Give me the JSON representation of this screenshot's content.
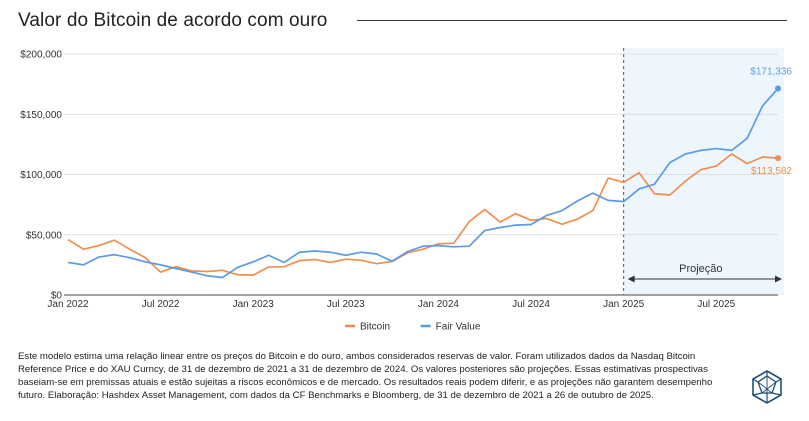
{
  "page": {
    "title": "Valor do Bitcoin de acordo com ouro",
    "footnote": "Este modelo estima uma relação linear entre os preços do Bitcoin e do ouro, ambos considerados reservas de valor. Foram utilizados dados da Nasdaq Bitcoin Reference Price e do XAU Curncy, de 31 de dezembro de 2021 a 31 de dezembro de 2024. Os valores posteriores são projeções. Essas estimativas prospectivas baseiam-se em premissas atuais e estão sujeitas a riscos econômicos e de mercado. Os resultados reais podem diferir, e as projeções não garantem desempenho futuro. Elaboração: Hashdex Asset Management, com dados da CF Benchmarks e Bloomberg, de 31 de dezembro de 2021 a 26 de outubro de 2025.",
    "logo_icon": "hashdex-logo-icon"
  },
  "chart_data": {
    "type": "line",
    "title": "Valor do Bitcoin de acordo com ouro",
    "xlabel": "",
    "ylabel": "",
    "x_ticks": [
      "Jan 2022",
      "Jul 2022",
      "Jan 2023",
      "Jul 2023",
      "Jan 2024",
      "Jul 2024",
      "Jan 2025",
      "Jul 2025"
    ],
    "y_ticks": [
      "$0",
      "$50,000",
      "$100,000",
      "$150,000",
      "$200,000"
    ],
    "xlim": [
      "2022-01",
      "2025-11"
    ],
    "ylim": [
      0,
      200000
    ],
    "grid": "horizontal",
    "legend_position": "bottom",
    "projection": {
      "label": "Projeção",
      "start": "2025-01",
      "end": "2025-11",
      "fill_color": "#EEF6FD",
      "divider": "dashed"
    },
    "x": [
      "2022-01",
      "2022-02",
      "2022-03",
      "2022-04",
      "2022-05",
      "2022-06",
      "2022-07",
      "2022-08",
      "2022-09",
      "2022-10",
      "2022-11",
      "2022-12",
      "2023-01",
      "2023-02",
      "2023-03",
      "2023-04",
      "2023-05",
      "2023-06",
      "2023-07",
      "2023-08",
      "2023-09",
      "2023-10",
      "2023-11",
      "2023-12",
      "2024-01",
      "2024-02",
      "2024-03",
      "2024-04",
      "2024-05",
      "2024-06",
      "2024-07",
      "2024-08",
      "2024-09",
      "2024-10",
      "2024-11",
      "2024-12",
      "2025-01",
      "2025-02",
      "2025-03",
      "2025-04",
      "2025-05",
      "2025-06",
      "2025-07",
      "2025-08",
      "2025-09",
      "2025-10",
      "2025-11"
    ],
    "series": [
      {
        "name": "Bitcoin",
        "color": "#F28E4C",
        "end_label": "$113,582",
        "values": [
          46000,
          38000,
          41000,
          45500,
          38000,
          31000,
          19000,
          23500,
          20000,
          19500,
          20500,
          16800,
          16500,
          23200,
          23500,
          28500,
          29500,
          27000,
          29700,
          28800,
          26000,
          27800,
          35000,
          38000,
          42500,
          43000,
          61000,
          71000,
          60500,
          67500,
          62000,
          63500,
          58700,
          63000,
          70000,
          97000,
          93500,
          101500,
          84000,
          83000,
          94500,
          104000,
          107000,
          117000,
          109000,
          114500,
          113582
        ]
      },
      {
        "name": "Fair Value",
        "color": "#5B9BE6",
        "end_label": "$171,336",
        "values": [
          27000,
          25000,
          31500,
          33500,
          31000,
          27500,
          25000,
          22000,
          19000,
          16000,
          14500,
          23000,
          27500,
          33000,
          27000,
          35500,
          36500,
          35500,
          33000,
          35500,
          34000,
          28000,
          36000,
          40500,
          41000,
          40000,
          40500,
          53500,
          56000,
          58000,
          58500,
          66000,
          70000,
          78000,
          84500,
          78500,
          77500,
          88000,
          92000,
          110000,
          117000,
          120000,
          121500,
          120000,
          130000,
          157000,
          171336
        ]
      }
    ]
  }
}
